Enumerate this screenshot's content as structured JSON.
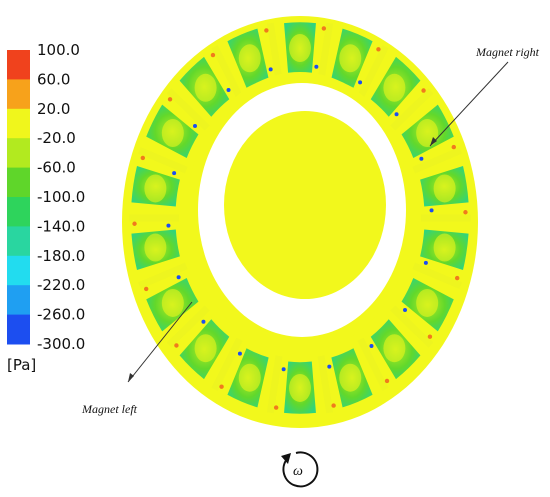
{
  "legend": {
    "units": "[Pa]",
    "ticks": [
      "100.0",
      "60.0",
      "20.0",
      "-20.0",
      "-60.0",
      "-100.0",
      "-140.0",
      "-180.0",
      "-220.0",
      "-260.0",
      "-300.0"
    ],
    "band_colors": [
      "#f0421d",
      "#f7a21b",
      "#f0f61c",
      "#b2ea1f",
      "#5fd62a",
      "#2ed45c",
      "#29d6a0",
      "#22dcef",
      "#1f9ff2",
      "#1c4ef0"
    ]
  },
  "annotations": {
    "magnet_right": "Magnet right",
    "magnet_left": "Magnet left"
  },
  "rotation_symbol": "ω",
  "colors": {
    "field_yellow": "#f2f81c",
    "channel_green": "#5fd62a",
    "channel_light": "#a6e82a",
    "channel_cyan": "#27d6ad",
    "spoke": "#eef51f",
    "stagnation": "#f07a1d"
  }
}
